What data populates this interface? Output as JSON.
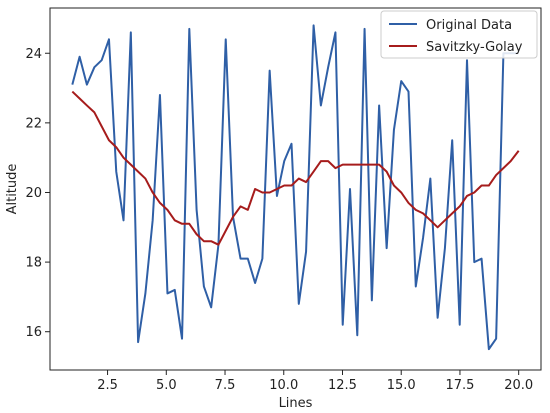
{
  "chart_data": {
    "type": "line",
    "xlabel": "Lines",
    "ylabel": "Altitude",
    "xlim": [
      0.05,
      20.95
    ],
    "ylim": [
      14.9,
      25.3
    ],
    "xticks": [
      2.5,
      5.0,
      7.5,
      10.0,
      12.5,
      15.0,
      17.5,
      20.0
    ],
    "xtick_labels": [
      "2.5",
      "5.0",
      "7.5",
      "10.0",
      "12.5",
      "15.0",
      "17.5",
      "20.0"
    ],
    "yticks": [
      16,
      18,
      20,
      22,
      24
    ],
    "ytick_labels": [
      "16",
      "18",
      "20",
      "22",
      "24"
    ],
    "grid": false,
    "legend": "top-right",
    "x": [
      1.0,
      1.31,
      1.62,
      1.94,
      2.25,
      2.56,
      2.87,
      3.18,
      3.49,
      3.8,
      4.11,
      4.42,
      4.73,
      5.05,
      5.36,
      5.67,
      5.98,
      6.29,
      6.6,
      6.91,
      7.22,
      7.53,
      7.84,
      8.16,
      8.47,
      8.78,
      9.09,
      9.4,
      9.71,
      10.02,
      10.33,
      10.64,
      10.95,
      11.27,
      11.58,
      11.89,
      12.2,
      12.51,
      12.82,
      13.13,
      13.44,
      13.75,
      14.06,
      14.38,
      14.69,
      15.0,
      15.31,
      15.62,
      15.93,
      16.24,
      16.55,
      16.86,
      17.17,
      17.49,
      17.8,
      18.11,
      18.42,
      18.73,
      19.04,
      19.35,
      19.66,
      20.0
    ],
    "series": [
      {
        "name": "Original Data",
        "color": "#2f5fa6",
        "values": [
          23.1,
          23.9,
          23.1,
          23.6,
          23.8,
          24.4,
          20.6,
          19.2,
          24.6,
          15.7,
          17.1,
          19.2,
          22.8,
          17.1,
          17.2,
          15.8,
          24.7,
          19.5,
          17.3,
          16.7,
          18.5,
          24.4,
          19.3,
          18.1,
          18.1,
          17.4,
          18.1,
          23.5,
          19.9,
          20.9,
          21.4,
          16.8,
          18.3,
          24.8,
          22.5,
          23.6,
          24.6,
          16.2,
          20.1,
          15.9,
          24.7,
          16.9,
          22.5,
          18.4,
          21.8,
          23.2,
          22.9,
          17.3,
          18.7,
          20.4,
          16.4,
          18.4,
          21.5,
          16.2,
          23.8,
          18.0,
          18.1,
          15.5,
          15.8,
          24.0,
          24.0,
          24.0
        ]
      },
      {
        "name": "Savitzky-Golay",
        "color": "#a61c1c",
        "values": [
          22.9,
          22.7,
          22.5,
          22.3,
          21.9,
          21.5,
          21.3,
          21.0,
          20.8,
          20.6,
          20.4,
          20.0,
          19.7,
          19.5,
          19.2,
          19.1,
          19.1,
          18.8,
          18.6,
          18.6,
          18.5,
          18.9,
          19.3,
          19.6,
          19.5,
          20.1,
          20.0,
          20.0,
          20.1,
          20.2,
          20.2,
          20.4,
          20.3,
          20.6,
          20.9,
          20.9,
          20.7,
          20.8,
          20.8,
          20.8,
          20.8,
          20.8,
          20.8,
          20.6,
          20.2,
          20.0,
          19.7,
          19.5,
          19.4,
          19.2,
          19.0,
          19.2,
          19.4,
          19.6,
          19.9,
          20.0,
          20.2,
          20.2,
          20.5,
          20.7,
          20.9,
          21.2
        ]
      }
    ]
  }
}
